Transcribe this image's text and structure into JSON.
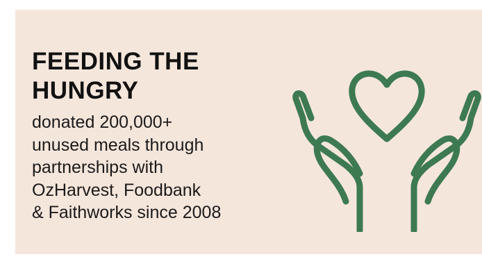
{
  "card": {
    "title_lines": [
      "FEEDING THE",
      "HUNGRY"
    ],
    "description_lines": [
      "donated 200,000+",
      "unused meals through",
      "partnerships with",
      "OzHarvest, Foodbank",
      "& Faithworks since 2008"
    ],
    "icon": "hands-holding-heart-icon"
  },
  "colors": {
    "background": "#f5e6dc",
    "text": "#111111",
    "icon": "#3d7a52"
  }
}
